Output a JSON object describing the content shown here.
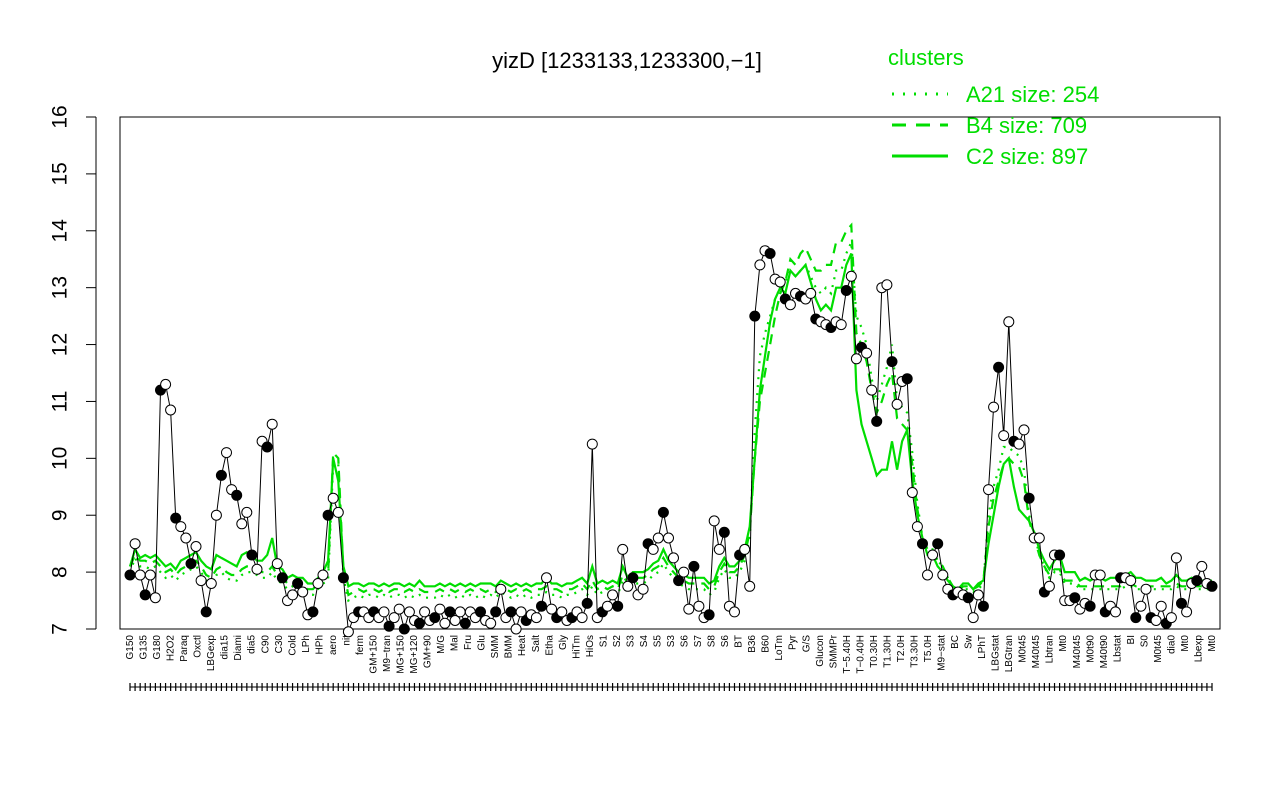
{
  "chart_data": {
    "type": "line",
    "title": "yizD [1233133,1233300,−1]",
    "xlabel": "",
    "ylabel": "",
    "ylim": [
      7,
      16
    ],
    "yticks": [
      7,
      8,
      9,
      10,
      11,
      12,
      13,
      14,
      15,
      16
    ],
    "x_tick_labels": [
      "G150",
      "G135",
      "G180",
      "H2O2",
      "Paraq",
      "Oxctl",
      "LBGexp",
      "dia15",
      "Diami",
      "dia5",
      "C90",
      "C30",
      "Cold",
      "LPh",
      "HPh",
      "aero",
      "nit",
      "ferm",
      "GM+150",
      "M9−tran",
      "MG+150",
      "MG+120",
      "GM+90",
      "M/G",
      "Mal",
      "Fru",
      "Glu",
      "SMM",
      "BMM",
      "Heat",
      "Salt",
      "Etha",
      "Gly",
      "HiTm",
      "HiOs",
      "S1",
      "S2",
      "S3",
      "S4",
      "S5",
      "S3",
      "S6",
      "S7",
      "S8",
      "S6",
      "BT",
      "B36",
      "B60",
      "LoTm",
      "Pyr",
      "G/S",
      "Glucon",
      "SMMPr",
      "T−5.40H",
      "T−0.40H",
      "T0.30H",
      "T1.30H",
      "T2.0H",
      "T3.30H",
      "T5.0H",
      "M9−stat",
      "BC",
      "Sw",
      "LPhT",
      "LBGstat",
      "LBGtran",
      "M0t45",
      "M40t45",
      "Lbtran",
      "Mt0",
      "M40t45",
      "M0t90",
      "M40t90",
      "Lbstat",
      "BI",
      "S0",
      "M0t45",
      "dia0",
      "Mt0",
      "Lbexp",
      "Mt0"
    ],
    "legend": {
      "title": "clusters",
      "entries": [
        {
          "label": "A21 size: 254",
          "style": "dotted"
        },
        {
          "label": "B4 size: 709",
          "style": "dashed"
        },
        {
          "label": "C2 size: 897",
          "style": "solid"
        }
      ],
      "placement": "top-right"
    },
    "series": [
      {
        "values": [
          7.95,
          8.5,
          7.95,
          7.6,
          7.95,
          7.55,
          11.2,
          11.3,
          10.85,
          8.95,
          8.8,
          8.6,
          8.15,
          8.45,
          7.85,
          7.3,
          7.8,
          9.0,
          9.7,
          10.1,
          9.45,
          9.35,
          8.85,
          9.05,
          8.3,
          8.05,
          10.3,
          10.2,
          10.6,
          8.15,
          7.9,
          7.5,
          7.6,
          7.8,
          7.65,
          7.25,
          7.3,
          7.8,
          7.95,
          9.0,
          9.3,
          9.05,
          7.9,
          6.95,
          7.2,
          7.3,
          7.3,
          7.2,
          7.3,
          7.2,
          7.3,
          7.05,
          7.2,
          7.35,
          7.0,
          7.3,
          7.15,
          7.1,
          7.3,
          7.15,
          7.2,
          7.35,
          7.1,
          7.3,
          7.15,
          7.3,
          7.1,
          7.3,
          7.2,
          7.3,
          7.15,
          7.1,
          7.3,
          7.7,
          7.2,
          7.3,
          7.0,
          7.3,
          7.15,
          7.25,
          7.2,
          7.4,
          7.9,
          7.35,
          7.2,
          7.3,
          7.15,
          7.2,
          7.3,
          7.2,
          7.45,
          10.25,
          7.2,
          7.3,
          7.4,
          7.6,
          7.4,
          8.4,
          7.75,
          7.9,
          7.6,
          7.7,
          8.5,
          8.4,
          8.6,
          9.05,
          8.6,
          8.25,
          7.85,
          8.0,
          7.35,
          8.1,
          7.4,
          7.2,
          7.25,
          8.9,
          8.4,
          8.7,
          7.4,
          7.3,
          8.3,
          8.4,
          7.75,
          12.5,
          13.4,
          13.65,
          13.6,
          13.15,
          13.1,
          12.8,
          12.7,
          12.9,
          12.85,
          12.8,
          12.9,
          12.45,
          12.4,
          12.35,
          12.3,
          12.4,
          12.35,
          12.95,
          13.2,
          11.75,
          11.95,
          11.85,
          11.2,
          10.65,
          13.0,
          13.05,
          11.7,
          10.95,
          11.35,
          11.4,
          9.4,
          8.8,
          8.5,
          7.95,
          8.3,
          8.5,
          7.95,
          7.7,
          7.6,
          7.65,
          7.6,
          7.55,
          7.2,
          7.6,
          7.4,
          9.45,
          10.9,
          11.6,
          10.4,
          12.4,
          10.3,
          10.25,
          10.5,
          9.3,
          8.6,
          8.6,
          7.65,
          7.75,
          8.3,
          8.3,
          7.5,
          7.5,
          7.55,
          7.35,
          7.45,
          7.4,
          7.95,
          7.95,
          7.3,
          7.4,
          7.3,
          7.9,
          7.9,
          7.85,
          7.2,
          7.4,
          7.7,
          7.2,
          7.15,
          7.4,
          7.1,
          7.2,
          8.25,
          7.45,
          7.3,
          7.8,
          7.85,
          8.1,
          7.8,
          7.75
        ]
      },
      {
        "name": "A21 size: 254",
        "style": "dotted",
        "values": [
          8.0,
          8.25,
          8.1,
          8.1,
          8.05,
          8.1,
          8.0,
          7.9,
          7.95,
          7.85,
          7.95,
          8.0,
          8.05,
          8.1,
          8.0,
          7.85,
          7.8,
          7.95,
          8.0,
          7.9,
          7.85,
          7.85,
          7.95,
          8.0,
          8.0,
          7.95,
          7.9,
          7.9,
          8.0,
          7.85,
          7.8,
          7.7,
          7.75,
          7.7,
          7.7,
          7.6,
          7.6,
          7.7,
          7.8,
          7.85,
          9.9,
          9.9,
          7.9,
          7.5,
          7.55,
          7.6,
          7.55,
          7.6,
          7.6,
          7.55,
          7.6,
          7.55,
          7.6,
          7.6,
          7.55,
          7.6,
          7.55,
          7.6,
          7.55,
          7.55,
          7.55,
          7.6,
          7.55,
          7.6,
          7.55,
          7.6,
          7.55,
          7.6,
          7.55,
          7.6,
          7.55,
          7.6,
          7.55,
          7.65,
          7.6,
          7.55,
          7.6,
          7.55,
          7.6,
          7.55,
          7.6,
          7.6,
          7.65,
          7.6,
          7.6,
          7.55,
          7.6,
          7.6,
          7.65,
          7.7,
          7.6,
          7.75,
          7.6,
          7.65,
          7.6,
          7.65,
          7.6,
          7.85,
          7.7,
          7.8,
          7.8,
          7.8,
          7.85,
          7.95,
          8.0,
          8.15,
          8.0,
          7.9,
          7.8,
          7.75,
          7.7,
          7.7,
          7.7,
          7.7,
          7.6,
          7.65,
          7.9,
          8.05,
          7.9,
          7.9,
          8.0,
          8.2,
          8.6,
          10.5,
          11.8,
          12.2,
          12.5,
          12.8,
          13.0,
          13.1,
          13.3,
          13.2,
          13.3,
          13.4,
          13.2,
          13.0,
          12.9,
          13.0,
          12.9,
          13.3,
          13.3,
          13.6,
          13.8,
          12.5,
          12.3,
          12.0,
          11.4,
          11.0,
          11.3,
          11.6,
          12.0,
          11.0,
          10.9,
          10.8,
          10.1,
          9.2,
          8.6,
          8.4,
          8.4,
          8.2,
          8.1,
          7.9,
          7.7,
          7.6,
          7.7,
          7.7,
          7.65,
          7.7,
          7.8,
          9.0,
          9.5,
          9.8,
          10.2,
          10.2,
          10.1,
          10.05,
          9.8,
          9.0,
          8.7,
          8.3,
          8.1,
          7.9,
          8.0,
          8.0,
          7.8,
          7.8,
          7.8,
          7.7,
          7.7,
          7.7,
          7.7,
          7.7,
          7.7,
          7.7,
          7.7,
          7.7,
          7.75,
          7.75,
          7.7,
          7.7,
          7.7,
          7.7,
          7.7,
          7.7,
          7.7,
          7.7,
          7.75,
          7.7,
          7.7,
          7.75,
          7.7,
          7.7,
          7.7,
          7.7
        ]
      },
      {
        "name": "B4 size: 709",
        "style": "dashed",
        "values": [
          8.1,
          8.3,
          8.2,
          8.2,
          8.15,
          8.2,
          8.1,
          8.0,
          8.05,
          7.95,
          8.05,
          8.1,
          8.15,
          8.2,
          8.1,
          7.95,
          7.9,
          8.05,
          8.1,
          8.0,
          7.95,
          7.95,
          8.05,
          8.1,
          8.1,
          8.05,
          8.0,
          8.0,
          8.1,
          7.95,
          7.9,
          7.8,
          7.85,
          7.8,
          7.8,
          7.7,
          7.7,
          7.8,
          7.9,
          7.95,
          10.1,
          10.0,
          8.0,
          7.6,
          7.65,
          7.7,
          7.65,
          7.7,
          7.7,
          7.65,
          7.7,
          7.65,
          7.7,
          7.7,
          7.65,
          7.7,
          7.65,
          7.7,
          7.65,
          7.65,
          7.65,
          7.7,
          7.65,
          7.7,
          7.65,
          7.7,
          7.65,
          7.7,
          7.65,
          7.7,
          7.65,
          7.7,
          7.65,
          7.75,
          7.7,
          7.65,
          7.7,
          7.65,
          7.7,
          7.65,
          7.7,
          7.7,
          7.75,
          7.7,
          7.7,
          7.65,
          7.7,
          7.7,
          7.75,
          7.8,
          7.7,
          7.85,
          7.7,
          7.75,
          7.7,
          7.75,
          7.7,
          7.95,
          7.8,
          7.9,
          7.9,
          7.9,
          7.95,
          8.05,
          8.1,
          8.25,
          8.1,
          8.0,
          7.9,
          7.85,
          7.8,
          7.8,
          7.8,
          7.8,
          7.7,
          7.75,
          8.0,
          8.15,
          8.0,
          8.0,
          8.1,
          8.3,
          8.7,
          10.0,
          11.0,
          11.5,
          12.0,
          12.5,
          12.9,
          13.1,
          13.5,
          13.4,
          13.6,
          13.7,
          13.5,
          13.3,
          13.3,
          13.4,
          13.4,
          13.8,
          13.8,
          14.0,
          14.1,
          12.2,
          12.0,
          11.7,
          11.2,
          10.8,
          11.0,
          11.3,
          11.5,
          10.7,
          10.6,
          10.5,
          9.9,
          9.1,
          8.6,
          8.4,
          8.4,
          8.2,
          8.1,
          7.9,
          7.75,
          7.65,
          7.75,
          7.75,
          7.7,
          7.75,
          7.85,
          8.8,
          9.3,
          9.6,
          9.9,
          10.0,
          9.9,
          9.85,
          9.6,
          8.9,
          8.6,
          8.3,
          8.1,
          7.95,
          8.05,
          8.05,
          7.85,
          7.85,
          7.85,
          7.75,
          7.75,
          7.75,
          7.75,
          7.75,
          7.75,
          7.75,
          7.75,
          7.75,
          7.8,
          7.8,
          7.75,
          7.75,
          7.75,
          7.75,
          7.75,
          7.75,
          7.75,
          7.75,
          7.8,
          7.75,
          7.75,
          7.8,
          7.75,
          7.75,
          7.75,
          7.75
        ]
      },
      {
        "name": "C2 size: 897",
        "style": "solid",
        "values": [
          8.1,
          8.4,
          8.25,
          8.3,
          8.25,
          8.3,
          8.2,
          8.1,
          8.15,
          8.05,
          8.2,
          8.25,
          8.3,
          8.35,
          8.2,
          8.1,
          8.05,
          8.3,
          8.25,
          8.2,
          8.15,
          8.1,
          8.3,
          8.35,
          8.3,
          8.2,
          8.2,
          8.3,
          8.6,
          8.1,
          8.05,
          7.9,
          7.95,
          7.9,
          7.9,
          7.8,
          7.8,
          7.9,
          8.0,
          8.2,
          10.0,
          9.6,
          8.1,
          7.75,
          7.8,
          7.8,
          7.75,
          7.8,
          7.8,
          7.75,
          7.8,
          7.75,
          7.8,
          7.8,
          7.75,
          7.8,
          7.75,
          7.85,
          7.75,
          7.75,
          7.75,
          7.8,
          7.75,
          7.8,
          7.75,
          7.8,
          7.75,
          7.8,
          7.75,
          7.8,
          7.8,
          7.8,
          7.75,
          7.85,
          7.8,
          7.75,
          7.8,
          7.75,
          7.8,
          7.75,
          7.8,
          7.8,
          7.9,
          7.8,
          7.8,
          7.75,
          7.8,
          7.8,
          7.85,
          7.9,
          7.8,
          8.1,
          7.8,
          7.85,
          7.8,
          7.85,
          7.8,
          8.1,
          7.9,
          8.0,
          8.0,
          8.0,
          8.05,
          8.15,
          8.2,
          8.4,
          8.2,
          8.1,
          8.0,
          7.95,
          7.9,
          7.9,
          7.9,
          7.9,
          7.8,
          7.85,
          8.1,
          8.25,
          8.1,
          8.1,
          8.2,
          8.4,
          8.8,
          10.0,
          11.2,
          11.8,
          12.4,
          12.8,
          13.0,
          12.9,
          13.3,
          13.2,
          13.3,
          13.4,
          13.1,
          12.8,
          12.6,
          12.7,
          12.6,
          13.0,
          13.0,
          13.4,
          13.6,
          11.2,
          10.6,
          10.3,
          10.0,
          9.7,
          9.8,
          9.8,
          10.3,
          9.8,
          10.3,
          10.5,
          9.6,
          9.0,
          8.6,
          8.3,
          8.3,
          8.1,
          8.0,
          7.85,
          7.75,
          7.7,
          7.8,
          7.8,
          7.7,
          7.8,
          7.85,
          8.5,
          9.0,
          9.5,
          9.9,
          10.0,
          9.5,
          9.1,
          9.0,
          8.9,
          8.7,
          8.4,
          8.2,
          8.05,
          8.2,
          8.3,
          8.0,
          8.0,
          8.0,
          7.85,
          7.9,
          7.85,
          7.9,
          7.9,
          7.85,
          7.9,
          7.9,
          7.85,
          7.95,
          8.0,
          7.9,
          7.9,
          7.85,
          7.85,
          7.85,
          7.9,
          7.8,
          7.85,
          7.95,
          7.85,
          7.85,
          7.9,
          7.85,
          7.85,
          7.85,
          7.85
        ]
      }
    ]
  }
}
